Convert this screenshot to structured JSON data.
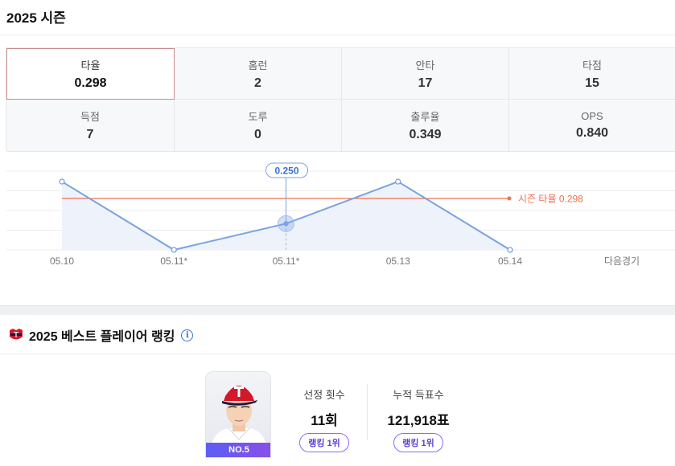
{
  "season": {
    "title": "2025 시즌"
  },
  "stats": [
    {
      "label": "타율",
      "value": "0.298"
    },
    {
      "label": "홈런",
      "value": "2"
    },
    {
      "label": "안타",
      "value": "17"
    },
    {
      "label": "타점",
      "value": "15"
    },
    {
      "label": "득점",
      "value": "7"
    },
    {
      "label": "도루",
      "value": "0"
    },
    {
      "label": "출루율",
      "value": "0.349"
    },
    {
      "label": "OPS",
      "value": "0.840"
    }
  ],
  "chart_data": {
    "type": "area",
    "categories": [
      "05.10",
      "05.11*",
      "05.11*",
      "05.13",
      "05.14"
    ],
    "trailing_label": "다음경기",
    "values": [
      0.33,
      0.2,
      0.25,
      0.33,
      0.2
    ],
    "selected_index": 2,
    "selected_label": "0.250",
    "reference_line": {
      "value": 0.298,
      "label": "시즌 타율 0.298"
    },
    "ylim": [
      0.2,
      0.35
    ],
    "colors": {
      "line": "#7aa3e0",
      "fill": "#eef2fb",
      "reference": "#f07050"
    }
  },
  "ranking": {
    "title": "2025 베스트 플레이어 랭킹",
    "team_logo": "tigers-logo",
    "info_icon_text": "i",
    "player_number": "NO.5",
    "metrics": [
      {
        "label": "선정 횟수",
        "value": "11회",
        "rank": "랭킹 1위"
      },
      {
        "label": "누적 득표수",
        "value": "121,918표",
        "rank": "랭킹 1위"
      }
    ]
  }
}
